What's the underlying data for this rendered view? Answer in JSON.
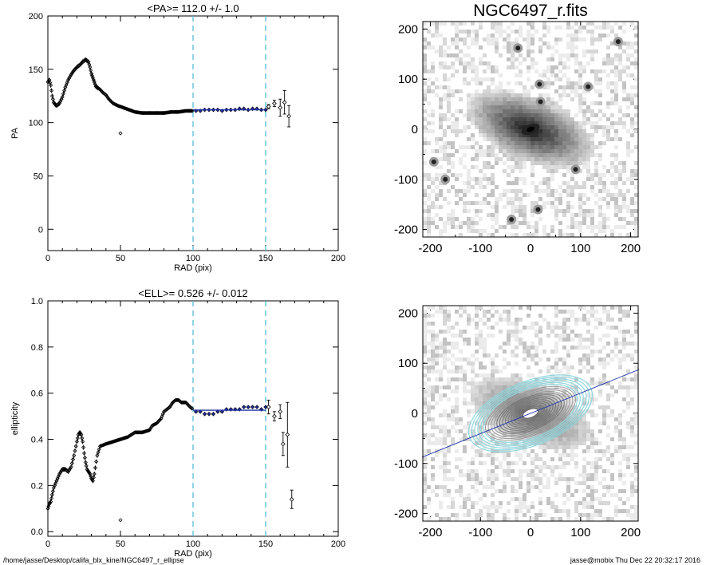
{
  "footer": {
    "path": "/home/jasse/Desktop/califa_blx_kine/NGC6497_r_ellipse",
    "user_time": "jasse@mobix  Thu Dec 22 20:32:17 2016"
  },
  "colors": {
    "fit_points": "#1f2a9a",
    "fit_line": "#2233aa",
    "range_lines": "#56bcd6",
    "contour_outer": "#8fd8df",
    "contour_inner": "#777777"
  },
  "chart_data": [
    {
      "type": "scatter",
      "title": "<PA>= 112.0 +/-   1.0",
      "xlabel": "RAD (pix)",
      "ylabel": "PA",
      "xlim": [
        0,
        200
      ],
      "ylim": [
        -20,
        200
      ],
      "xticks": [
        "0",
        "50",
        "100",
        "150",
        "200"
      ],
      "yticks": [
        "0",
        "50",
        "100",
        "150",
        "200"
      ],
      "range_lines": [
        100,
        150
      ],
      "mean_fit": {
        "y": 112.0,
        "x_range": [
          100,
          150
        ]
      },
      "curve_x": [
        0,
        1,
        2,
        3,
        4,
        5,
        6,
        8,
        10,
        12,
        14,
        16,
        18,
        20,
        22,
        24,
        26,
        28,
        29,
        30,
        31,
        32,
        33,
        34,
        35,
        36,
        38,
        40,
        42,
        45,
        48,
        52,
        56,
        60,
        65,
        70,
        75,
        80,
        85,
        90,
        95,
        100
      ],
      "curve_y": [
        138,
        140,
        135,
        125,
        119,
        117,
        116,
        118,
        124,
        133,
        140,
        145,
        149,
        152,
        154,
        157,
        159,
        157,
        152,
        146,
        142,
        138,
        134,
        133,
        132,
        131,
        128,
        126,
        122,
        118,
        116,
        114,
        112,
        110,
        109,
        109,
        109,
        109,
        110,
        110,
        111,
        111
      ],
      "fit_x": [
        102,
        105,
        108,
        111,
        114,
        117,
        120,
        123,
        126,
        129,
        132,
        135,
        138,
        141,
        144,
        147,
        150
      ],
      "fit_y": [
        111,
        111,
        112,
        112,
        112,
        112,
        111,
        112,
        112,
        112,
        113,
        113,
        112,
        113,
        113,
        112,
        112
      ],
      "outlier": {
        "x": 50,
        "y": 90,
        "err": 1.5
      },
      "tail_x": [
        152,
        156,
        160,
        163,
        166
      ],
      "tail_y": [
        115,
        118,
        114,
        119,
        106
      ],
      "tail_err": [
        2,
        3,
        8,
        11,
        10
      ]
    },
    {
      "type": "scatter",
      "title": "<ELL>= 0.526 +/-  0.012",
      "xlabel": "RAD (pix)",
      "ylabel": "ellipticity",
      "xlim": [
        0,
        200
      ],
      "ylim": [
        -0.02,
        1.0
      ],
      "xticks": [
        "0",
        "50",
        "100",
        "150",
        "200"
      ],
      "yticks": [
        "0.0",
        "0.2",
        "0.4",
        "0.6",
        "0.8",
        "1.0"
      ],
      "range_lines": [
        100,
        150
      ],
      "mean_fit": {
        "y": 0.526,
        "x_range": [
          100,
          150
        ]
      },
      "curve_x": [
        0,
        1,
        2,
        3,
        4,
        6,
        8,
        10,
        12,
        14,
        16,
        18,
        20,
        21,
        22,
        23,
        24,
        25,
        26,
        27,
        28,
        29,
        30,
        31,
        32,
        34,
        36,
        40,
        45,
        50,
        55,
        60,
        65,
        70,
        72,
        75,
        78,
        80,
        82,
        84,
        86,
        88,
        90,
        92,
        95,
        98,
        100
      ],
      "curve_y": [
        0.1,
        0.12,
        0.13,
        0.16,
        0.19,
        0.22,
        0.25,
        0.27,
        0.27,
        0.26,
        0.28,
        0.33,
        0.39,
        0.42,
        0.43,
        0.42,
        0.39,
        0.34,
        0.3,
        0.27,
        0.26,
        0.25,
        0.23,
        0.22,
        0.25,
        0.33,
        0.37,
        0.38,
        0.39,
        0.4,
        0.41,
        0.43,
        0.43,
        0.44,
        0.46,
        0.47,
        0.49,
        0.52,
        0.53,
        0.54,
        0.56,
        0.57,
        0.57,
        0.56,
        0.56,
        0.54,
        0.53
      ],
      "fit_x": [
        102,
        105,
        108,
        111,
        114,
        117,
        120,
        123,
        126,
        129,
        132,
        135,
        138,
        141,
        144,
        147,
        150
      ],
      "fit_y": [
        0.52,
        0.52,
        0.51,
        0.51,
        0.51,
        0.52,
        0.52,
        0.53,
        0.53,
        0.53,
        0.53,
        0.54,
        0.54,
        0.54,
        0.54,
        0.53,
        0.54
      ],
      "outlier": {
        "x": 50,
        "y": 0.05,
        "err": 0.005
      },
      "tail_x": [
        152,
        156,
        160,
        162,
        165,
        168
      ],
      "tail_y": [
        0.54,
        0.5,
        0.52,
        0.38,
        0.42,
        0.14
      ],
      "tail_err": [
        0.03,
        0.02,
        0.03,
        0.05,
        0.14,
        0.04
      ]
    },
    {
      "type": "heatmap",
      "title": "NGC6497_r.fits",
      "xlim": [
        -215,
        215
      ],
      "ylim": [
        -215,
        215
      ],
      "xticks": [
        "-200",
        "-100",
        "0",
        "100",
        "200"
      ],
      "yticks": [
        "-200",
        "-100",
        "0",
        "100",
        "200"
      ],
      "galaxy": {
        "cx": 0,
        "cy": 0,
        "pa_deg": 112.0,
        "ell": 0.526
      },
      "stars": [
        [
          18,
          90
        ],
        [
          -25,
          162
        ],
        [
          -170,
          -100
        ],
        [
          -193,
          -65
        ],
        [
          115,
          85
        ],
        [
          175,
          175
        ],
        [
          -38,
          -180
        ],
        [
          15,
          -160
        ],
        [
          90,
          -80
        ],
        [
          20,
          55
        ]
      ]
    },
    {
      "type": "heatmap",
      "title": "",
      "xlim": [
        -215,
        215
      ],
      "ylim": [
        -215,
        215
      ],
      "xticks": [
        "-200",
        "-100",
        "0",
        "100",
        "200"
      ],
      "yticks": [
        "-200",
        "-100",
        "0",
        "100",
        "200"
      ],
      "pa_line_angle_deg": 22.0
    }
  ]
}
